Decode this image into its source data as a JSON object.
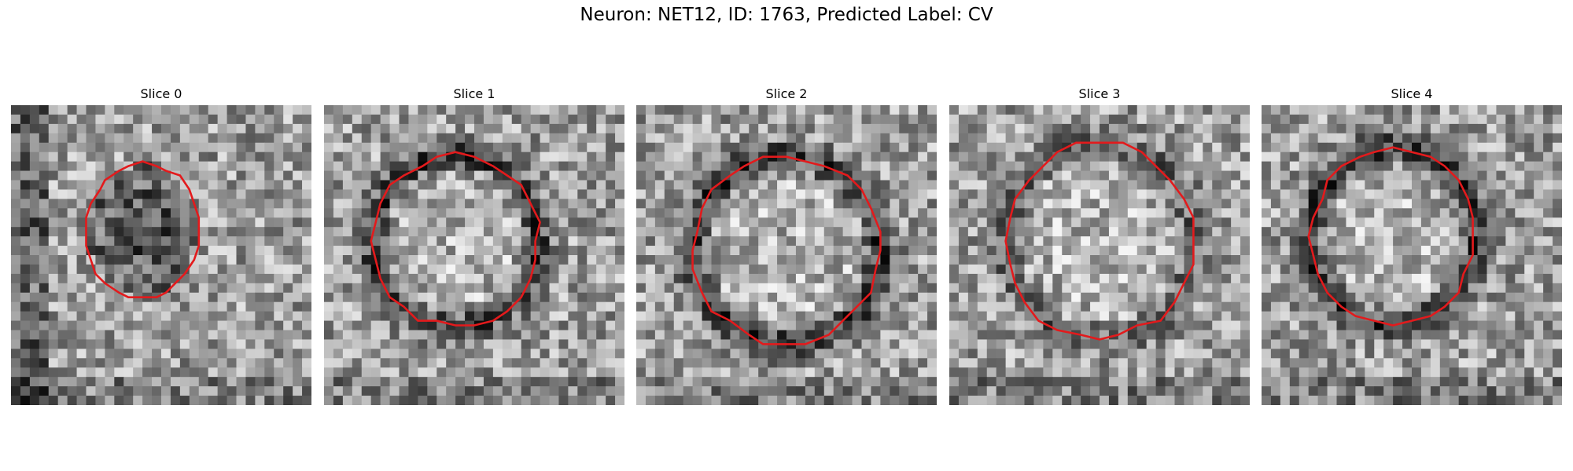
{
  "figure": {
    "title": "Neuron: NET12, ID: 1763, Predicted Label: CV"
  },
  "panels": [
    {
      "title": "Slice 0",
      "contour_color": "#e31a1c",
      "seed": 11,
      "ring": "dark-blob"
    },
    {
      "title": "Slice 1",
      "contour_color": "#e31a1c",
      "seed": 23,
      "ring": "dark-ring"
    },
    {
      "title": "Slice 2",
      "contour_color": "#e31a1c",
      "seed": 37,
      "ring": "dark-ring"
    },
    {
      "title": "Slice 3",
      "contour_color": "#e31a1c",
      "seed": 41,
      "ring": "dark-ring-faint"
    },
    {
      "title": "Slice 4",
      "contour_color": "#e31a1c",
      "seed": 59,
      "ring": "dark-ring"
    }
  ]
}
